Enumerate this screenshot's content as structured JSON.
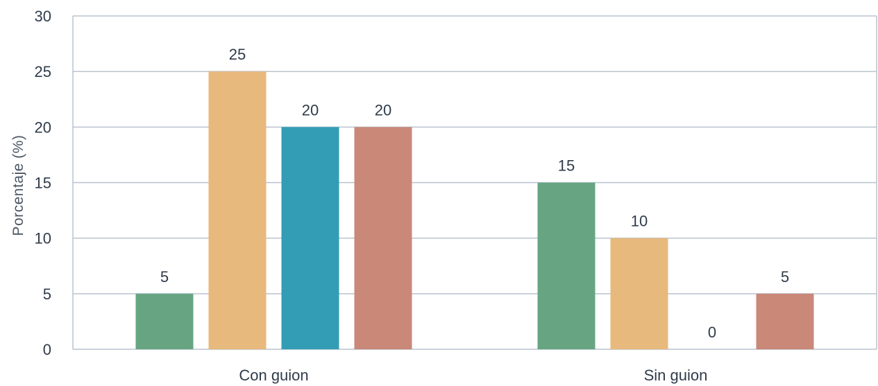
{
  "chart_data": {
    "type": "bar",
    "title": "",
    "xlabel": "",
    "ylabel": "Porcentaje (%)",
    "ylim": [
      0,
      30
    ],
    "yticks": [
      0,
      5,
      10,
      15,
      20,
      25,
      30
    ],
    "grid": true,
    "categories": [
      "Con guion",
      "Sin guion"
    ],
    "series": [
      {
        "color": "#67a582",
        "values": [
          5,
          15
        ]
      },
      {
        "color": "#e8b97c",
        "values": [
          25,
          10
        ]
      },
      {
        "color": "#339db5",
        "values": [
          20,
          0
        ]
      },
      {
        "color": "#c98878",
        "values": [
          20,
          5
        ]
      }
    ]
  }
}
